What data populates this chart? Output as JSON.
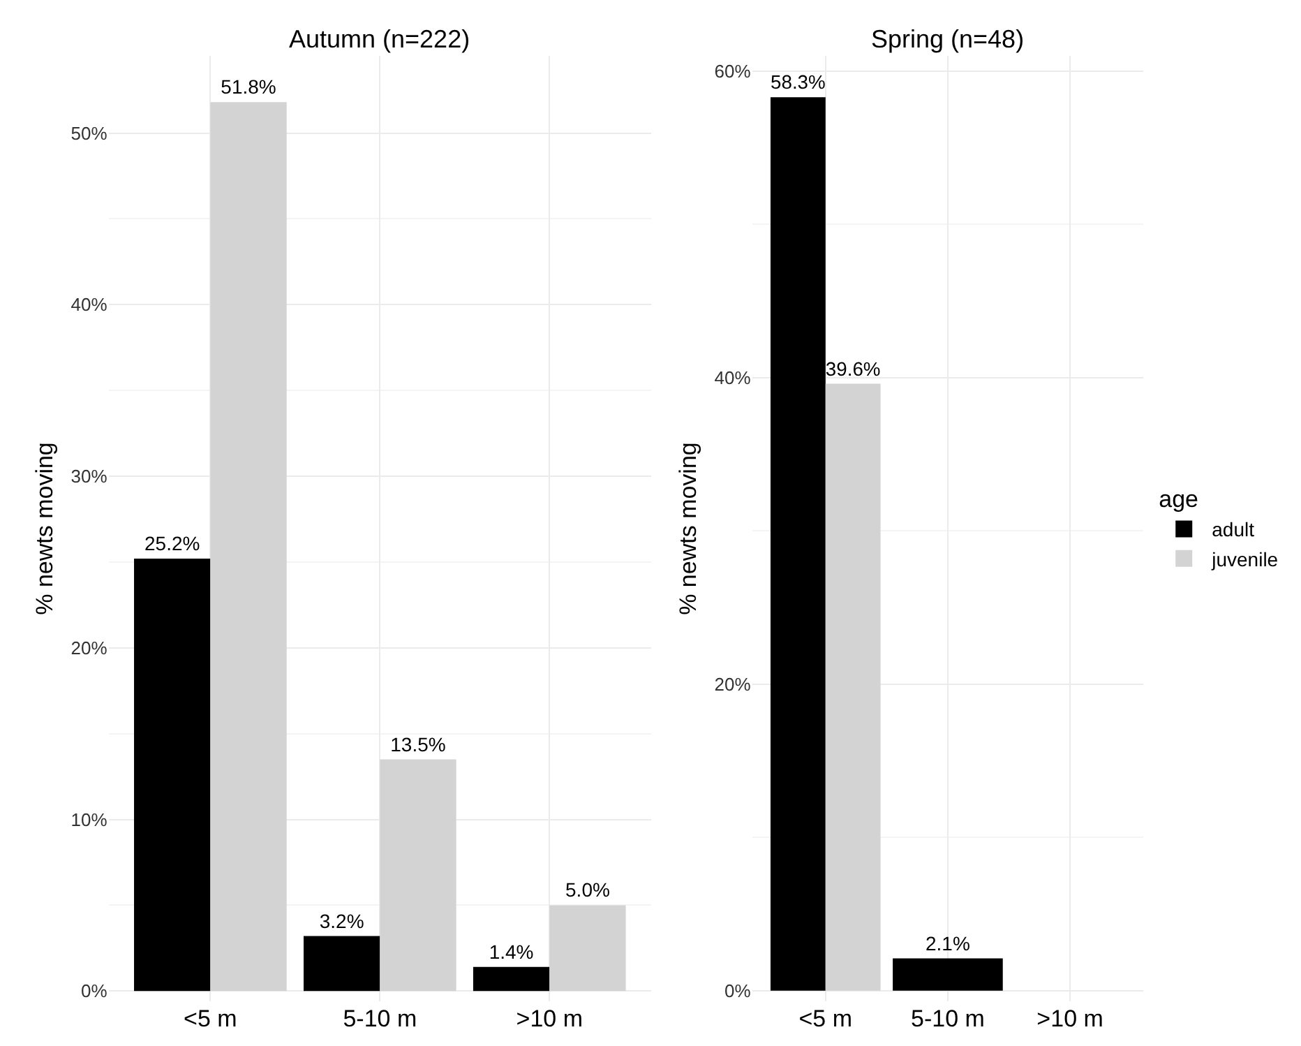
{
  "chart_data": [
    {
      "type": "bar",
      "title": "Autumn (n=222)",
      "ylabel": "% newts moving",
      "categories": [
        "<5 m",
        "5-10 m",
        ">10 m"
      ],
      "series": [
        {
          "name": "adult",
          "color": "#000000",
          "values": [
            25.2,
            3.2,
            1.4
          ],
          "value_labels": [
            "25.2%",
            "3.2%",
            "1.4%"
          ]
        },
        {
          "name": "juvenile",
          "color": "#d3d3d3",
          "values": [
            51.8,
            13.5,
            5.0
          ],
          "value_labels": [
            "51.8%",
            "13.5%",
            "5.0%"
          ]
        }
      ],
      "ylim": [
        -0.6,
        54.5
      ],
      "yticks": [
        {
          "value": 0,
          "label": "0%"
        },
        {
          "value": 10,
          "label": "10%"
        },
        {
          "value": 20,
          "label": "20%"
        },
        {
          "value": 30,
          "label": "30%"
        },
        {
          "value": 40,
          "label": "40%"
        },
        {
          "value": 50,
          "label": "50%"
        }
      ],
      "grid": true,
      "legend": "right",
      "legend_title": "age"
    },
    {
      "type": "bar",
      "title": "Spring (n=48)",
      "ylabel": "% newts moving",
      "categories": [
        "<5 m",
        "5-10 m",
        ">10 m"
      ],
      "series": [
        {
          "name": "adult",
          "color": "#000000",
          "values": [
            58.3,
            2.1,
            null
          ],
          "value_labels": [
            "58.3%",
            "2.1%",
            null
          ]
        },
        {
          "name": "juvenile",
          "color": "#d3d3d3",
          "values": [
            39.6,
            null,
            null
          ],
          "value_labels": [
            "39.6%",
            null,
            null
          ]
        }
      ],
      "ylim": [
        -0.7,
        61.0
      ],
      "yticks": [
        {
          "value": 0,
          "label": "0%"
        },
        {
          "value": 20,
          "label": "20%"
        },
        {
          "value": 40,
          "label": "40%"
        },
        {
          "value": 60,
          "label": "60%"
        }
      ],
      "grid": true,
      "legend": "right"
    }
  ]
}
